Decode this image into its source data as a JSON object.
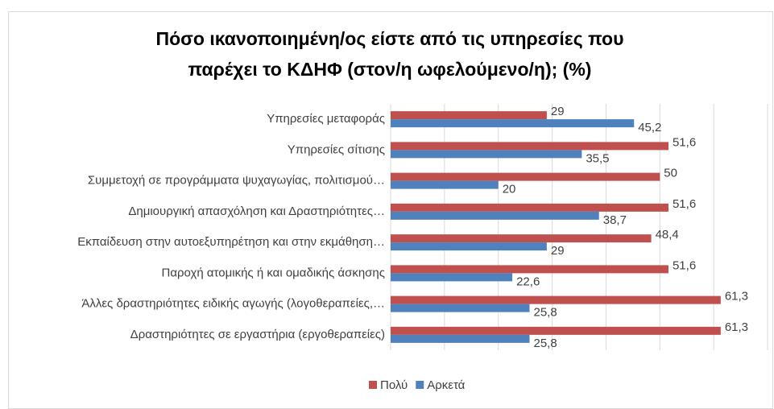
{
  "chart_data": {
    "type": "bar",
    "orientation": "horizontal",
    "title": [
      "Πόσο ικανοποιημένη/ος είστε από τις υπηρεσίες που",
      "παρέχει το ΚΔΗΦ (στον/η ωφελούμενο/η); (%)"
    ],
    "categories": [
      "Υπηρεσίες μεταφοράς",
      "Υπηρεσίες σίτισης",
      "Συμμετοχή σε προγράμματα ψυχαγωγίας, πολιτισμού…",
      "Δημιουργική απασχόληση και Δραστηριότητες…",
      "Εκπαίδευση στην αυτοεξυπηρέτηση και στην εκμάθηση…",
      "Παροχή ατομικής ή και ομαδικής άσκησης",
      "Άλλες δραστηριότητες ειδικής αγωγής (λογοθεραπείες,…",
      "Δραστηριότητες σε εργαστήρια (εργοθεραπείες)"
    ],
    "series": [
      {
        "name": "Πολύ",
        "color": "#c0504d",
        "values": [
          29,
          51.6,
          50,
          51.6,
          48.4,
          51.6,
          61.3,
          61.3
        ],
        "value_labels": [
          "29",
          "51,6",
          "50",
          "51,6",
          "48,4",
          "51,6",
          "61,3",
          "61,3"
        ]
      },
      {
        "name": "Αρκετά",
        "color": "#4f81bd",
        "values": [
          45.2,
          35.5,
          20,
          38.7,
          29,
          22.6,
          25.8,
          25.8
        ],
        "value_labels": [
          "45,2",
          "35,5",
          "20",
          "38,7",
          "29",
          "22,6",
          "25,8",
          "25,8"
        ]
      }
    ],
    "xlim": [
      0,
      70
    ],
    "xticks": [
      0,
      10,
      20,
      30,
      40,
      50,
      60,
      70
    ],
    "grid": true,
    "legend": "bottom"
  }
}
